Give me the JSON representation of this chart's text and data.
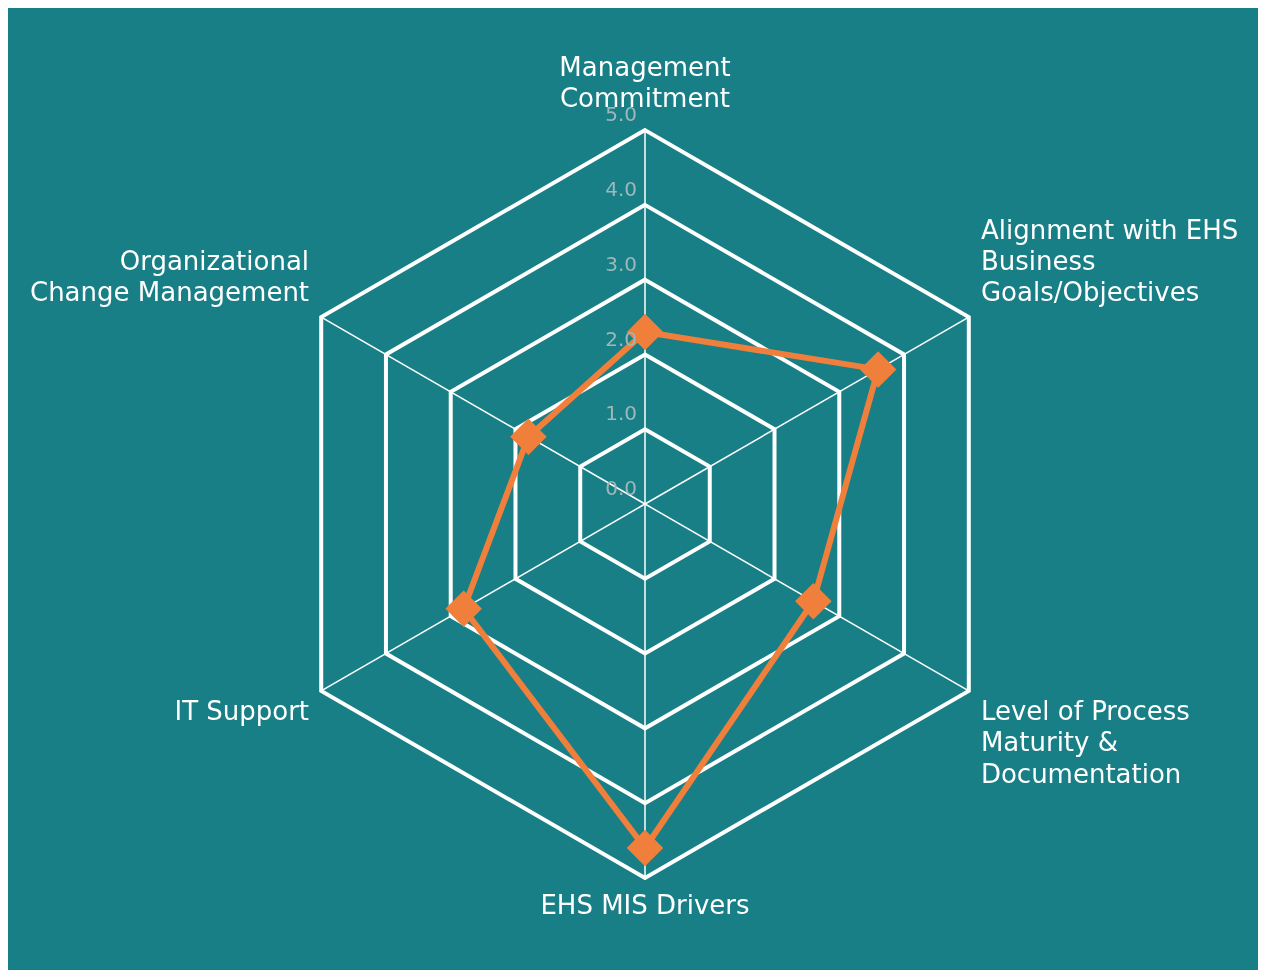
{
  "chart_data": {
    "type": "radar",
    "categories": [
      "Management Commitment",
      "Alignment with EHS Business Goals/Objectives",
      "Level of Process Maturity & Documentation",
      "EHS MIS Drivers",
      "IT Support",
      "Organizational Change Management"
    ],
    "series": [
      {
        "color": "#f07f3c",
        "values": [
          2.3,
          3.6,
          2.6,
          4.6,
          2.8,
          1.8
        ]
      }
    ],
    "ylim": [
      0,
      5
    ],
    "yticks": [
      {
        "value": 0,
        "label": "0.0"
      },
      {
        "value": 1,
        "label": "1.0"
      },
      {
        "value": 2,
        "label": "2.0"
      },
      {
        "value": 3,
        "label": "3.0"
      },
      {
        "value": 4,
        "label": "4.0"
      },
      {
        "value": 5,
        "label": "5.0"
      }
    ],
    "grid": true,
    "legend": false,
    "marker": "diamond",
    "line_style": "solid"
  }
}
